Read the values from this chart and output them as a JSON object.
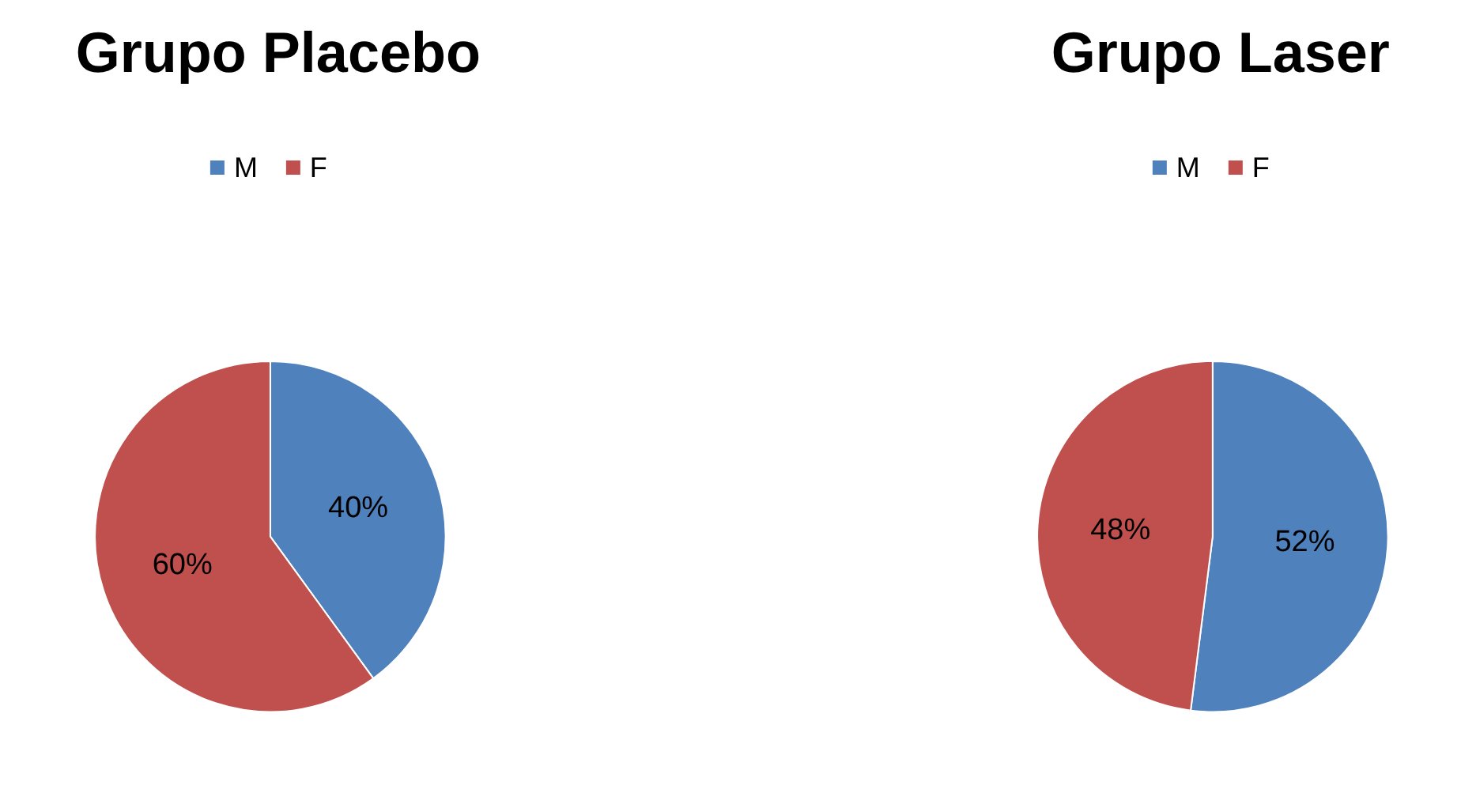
{
  "chart_data": [
    {
      "type": "pie",
      "title": "Grupo Placebo",
      "categories": [
        "M",
        "F"
      ],
      "values": [
        40,
        60
      ],
      "value_labels": [
        "40%",
        "60%"
      ],
      "colors": [
        "#4f81bd",
        "#c0504d"
      ],
      "legend": "top"
    },
    {
      "type": "pie",
      "title": "Grupo Laser",
      "categories": [
        "M",
        "F"
      ],
      "values": [
        52,
        48
      ],
      "value_labels": [
        "52%",
        "48%"
      ],
      "colors": [
        "#4f81bd",
        "#c0504d"
      ],
      "legend": "top"
    }
  ]
}
